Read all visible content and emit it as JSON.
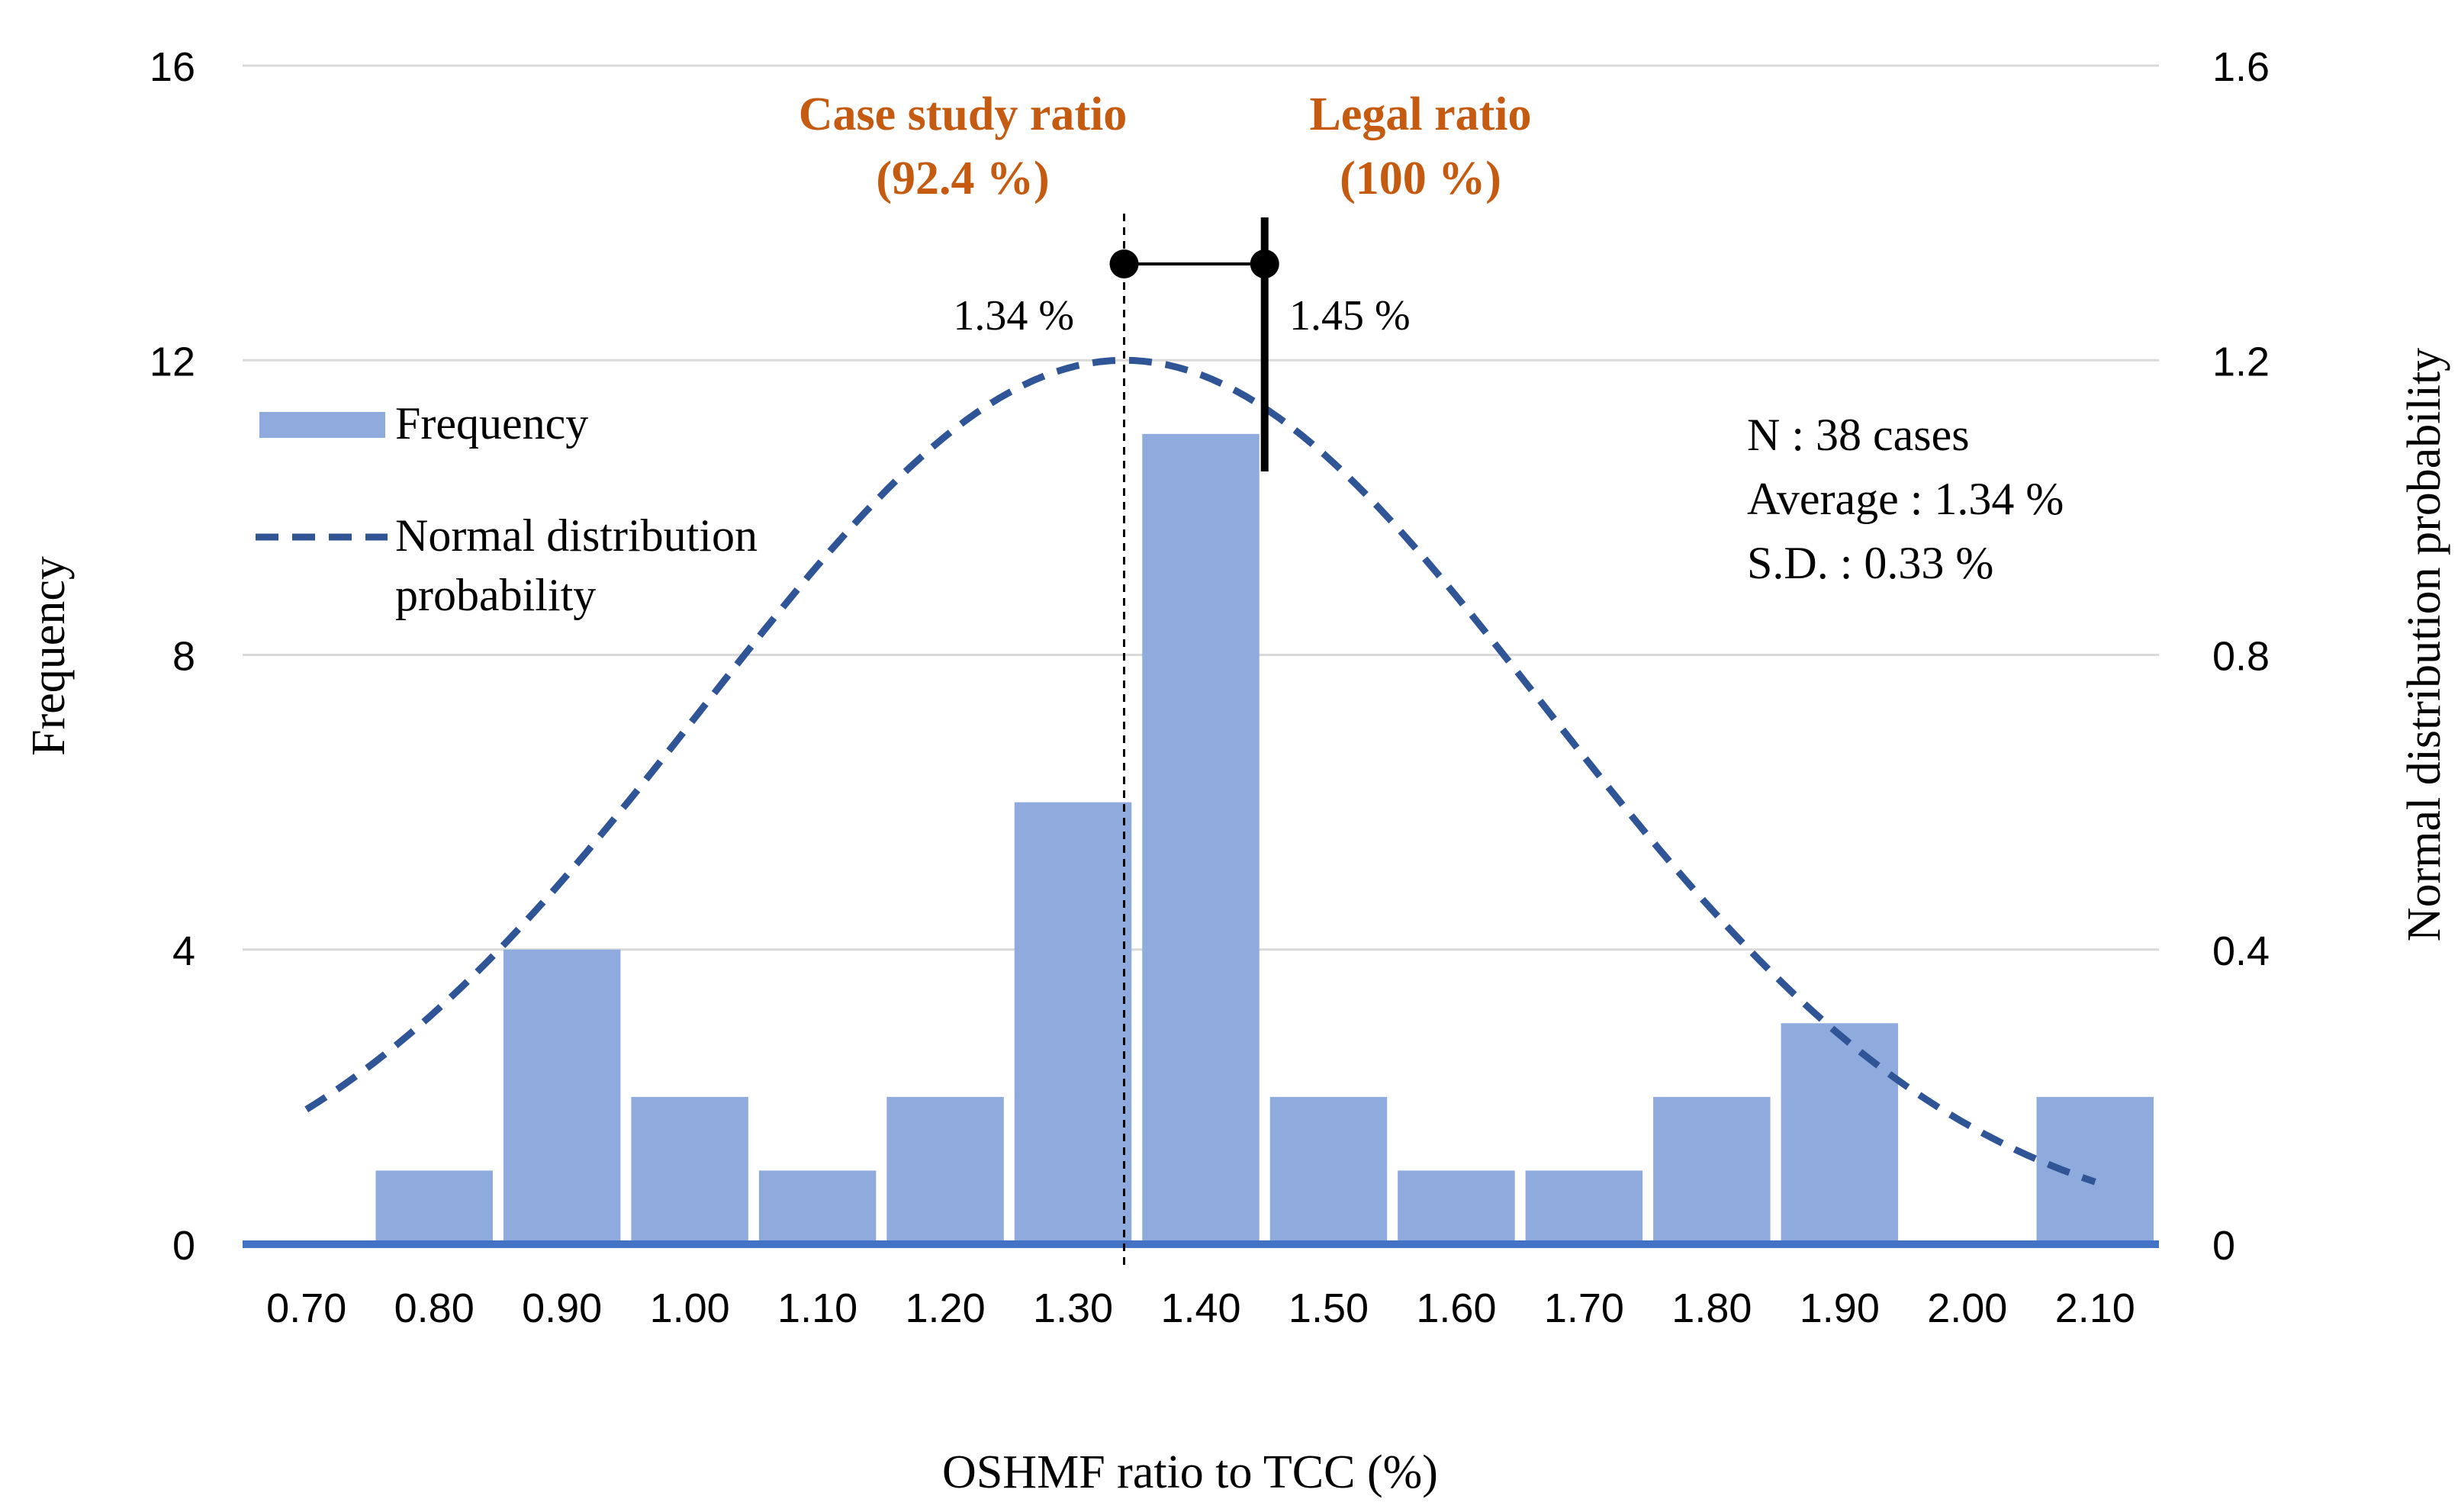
{
  "chart_data": {
    "type": "bar",
    "xlabel": "OSHMF ratio to TCC (%)",
    "ylabel": "Frequency",
    "y2label": "Normal distribution probability",
    "categories": [
      "0.70",
      "0.80",
      "0.90",
      "1.00",
      "1.10",
      "1.20",
      "1.30",
      "1.40",
      "1.50",
      "1.60",
      "1.70",
      "1.80",
      "1.90",
      "2.00",
      "2.10"
    ],
    "ylim": [
      0,
      16
    ],
    "y_ticks": [
      "0",
      "4",
      "8",
      "12",
      "16"
    ],
    "y2lim": [
      0,
      1.6
    ],
    "y2_ticks": [
      "0",
      "0.4",
      "0.8",
      "1.2",
      "1.6"
    ],
    "grid": true,
    "legend_position": "top-left",
    "series": [
      {
        "name": "Frequency",
        "type": "bar",
        "axis": "left",
        "color": "#8faadc",
        "values": [
          0,
          1,
          4,
          2,
          1,
          2,
          6,
          11,
          2,
          1,
          1,
          2,
          3,
          0,
          2
        ]
      },
      {
        "name": "Normal distribution probability",
        "type": "line",
        "style": "dashed",
        "axis": "right",
        "color": "#2f5597",
        "mean": 1.34,
        "sd": 0.33,
        "x_range": [
          0.7,
          2.1
        ],
        "peak": 1.2
      }
    ],
    "markers": {
      "case_study": {
        "title": "Case study ratio",
        "subtitle": "(92.4 %)",
        "value": 1.34,
        "value_label": "1.34 %"
      },
      "legal": {
        "title": "Legal ratio",
        "subtitle": "(100 %)",
        "value": 1.45,
        "value_label": "1.45 %"
      },
      "label_color": "#c55a11"
    },
    "stats": {
      "n": "N : 38 cases",
      "average": "Average : 1.34 %",
      "sd": "S.D. : 0.33 %"
    },
    "legend": {
      "frequency": "Frequency",
      "normal_line1": "Normal distribution",
      "normal_line2": "probability"
    },
    "colors": {
      "bar": "#8faadc",
      "line": "#2f5597",
      "baseline": "#4472c4",
      "grid": "#d9d9d9",
      "text": "#000000"
    }
  }
}
